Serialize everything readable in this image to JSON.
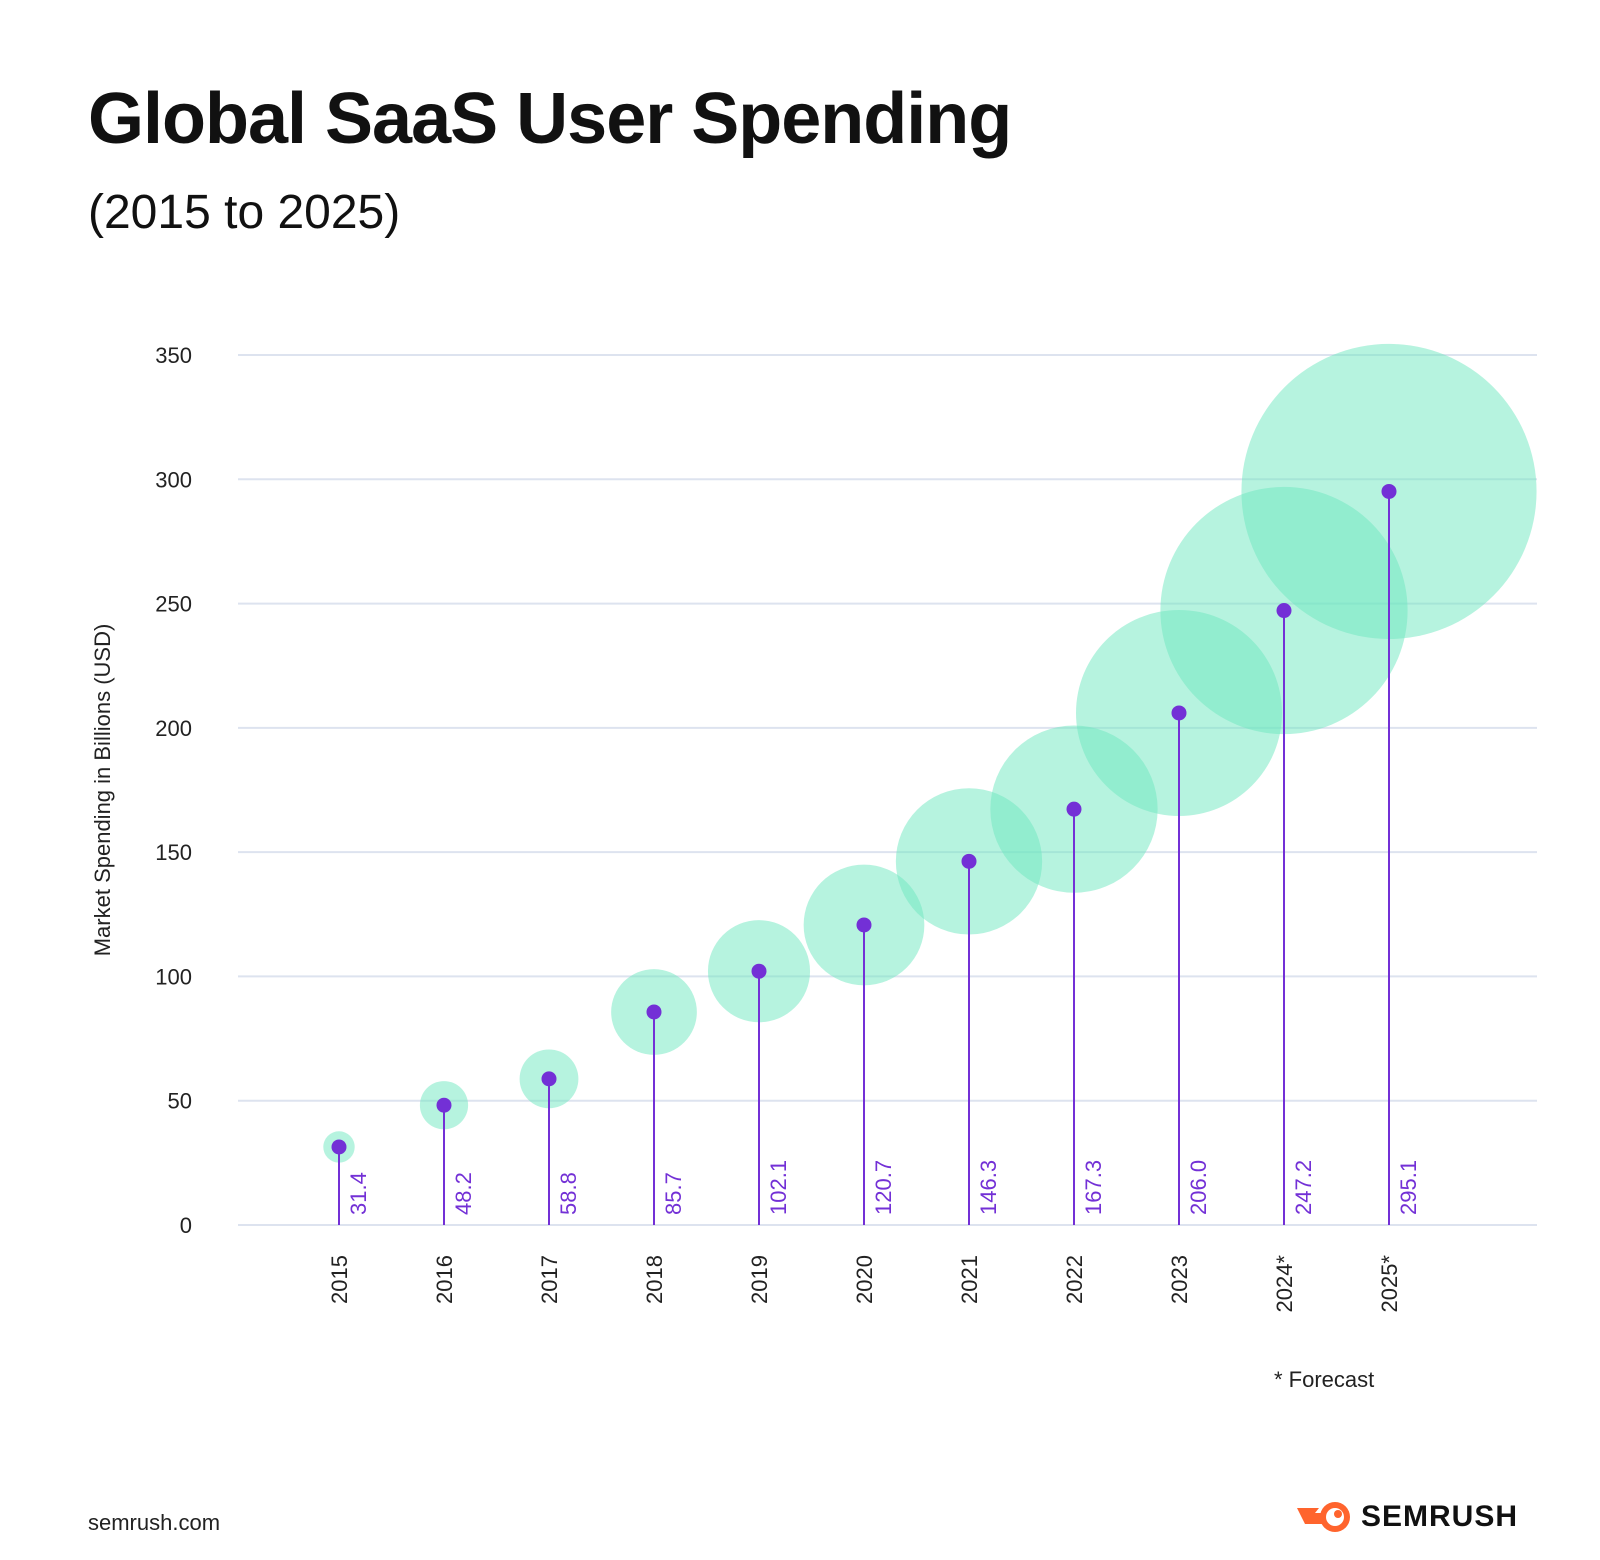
{
  "title": "Global SaaS User Spending",
  "subtitle": "(2015 to 2025)",
  "footnote": "* Forecast",
  "footer": {
    "url": "semrush.com",
    "brand": "SEMRUSH"
  },
  "colors": {
    "stem": "#7330d6",
    "bubble": "#6ee8bf",
    "grid": "#dde3ef",
    "label": "#7330d6"
  },
  "chart_data": {
    "type": "bubble-lollipop",
    "title": "Global SaaS User Spending",
    "subtitle": "(2015 to 2025)",
    "ylabel": "Market Spending in Billions (USD)",
    "xlabel": "",
    "ylim": [
      0,
      350
    ],
    "yticks": [
      0,
      50,
      100,
      150,
      200,
      250,
      300,
      350
    ],
    "grid": true,
    "categories": [
      "2015",
      "2016",
      "2017",
      "2018",
      "2019",
      "2020",
      "2021",
      "2022",
      "2023",
      "2024*",
      "2025*"
    ],
    "values": [
      31.4,
      48.2,
      58.8,
      85.7,
      102.1,
      120.7,
      146.3,
      167.3,
      206.0,
      247.2,
      295.1
    ],
    "value_labels": [
      "31.4",
      "48.2",
      "58.8",
      "85.7",
      "102.1",
      "120.7",
      "146.3",
      "167.3",
      "206.0",
      "247.2",
      "295.1"
    ],
    "bubble_size_encodes": "value"
  }
}
